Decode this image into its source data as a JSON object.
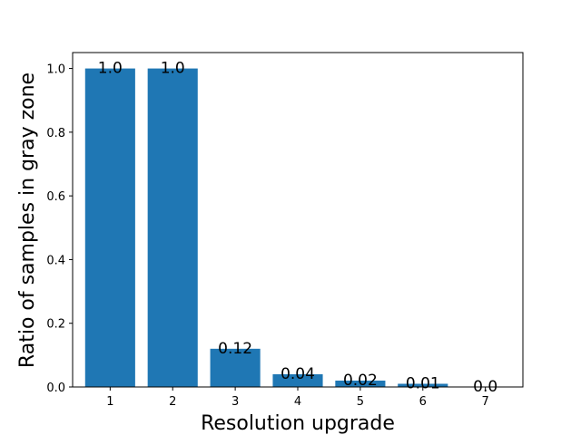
{
  "chart_data": {
    "type": "bar",
    "categories": [
      "1",
      "2",
      "3",
      "4",
      "5",
      "6",
      "7"
    ],
    "values": [
      1.0,
      1.0,
      0.12,
      0.04,
      0.02,
      0.01,
      0.0
    ],
    "data_labels": [
      "1.0",
      "1.0",
      "0.12",
      "0.04",
      "0.02",
      "0.01",
      "0.0"
    ],
    "xlabel": "Resolution upgrade",
    "ylabel": "Ratio of samples in gray zone",
    "ylim": [
      0,
      1.05
    ],
    "yticks": [
      "0.0",
      "0.2",
      "0.4",
      "0.6",
      "0.8",
      "1.0"
    ],
    "bar_color": "#1f77b4",
    "grid": false,
    "legend": false
  }
}
